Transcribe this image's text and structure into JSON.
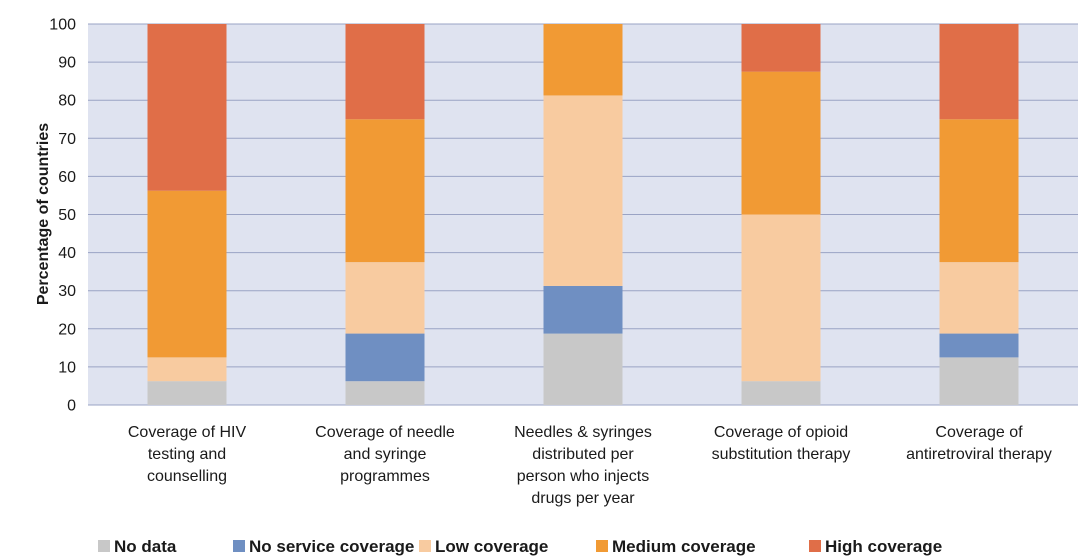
{
  "chart_data": {
    "type": "bar",
    "stacked": true,
    "categories": [
      [
        "Coverage of HIV",
        "testing and",
        "counselling"
      ],
      [
        "Coverage of needle",
        "and syringe",
        "programmes"
      ],
      [
        "Needles & syringes",
        "distributed per",
        "person who injects",
        "drugs per year"
      ],
      [
        "Coverage of opioid",
        "substitution therapy"
      ],
      [
        "Coverage of",
        "antiretroviral therapy"
      ]
    ],
    "series": [
      {
        "name": "No data",
        "color": "#c8c8c8",
        "values": [
          6.25,
          6.25,
          18.75,
          6.25,
          12.5
        ]
      },
      {
        "name": "No service coverage",
        "color": "#6f8fc2",
        "values": [
          0,
          12.5,
          12.5,
          0,
          6.25
        ]
      },
      {
        "name": "Low coverage",
        "color": "#f8cba0",
        "values": [
          6.25,
          18.75,
          50,
          43.75,
          18.75
        ]
      },
      {
        "name": "Medium coverage",
        "color": "#f19a34",
        "values": [
          43.75,
          37.5,
          18.75,
          37.5,
          37.5
        ]
      },
      {
        "name": "High coverage",
        "color": "#e06e48",
        "values": [
          43.75,
          25,
          0,
          12.5,
          25
        ]
      }
    ],
    "ylabel": "Percentage of countries",
    "yticks": [
      0,
      10,
      20,
      30,
      40,
      50,
      60,
      70,
      80,
      90,
      100
    ],
    "ylim": [
      0,
      100
    ],
    "grid": true,
    "plot_background": "#dfe3f0",
    "grid_color": "#9aa3c4",
    "legend_position": "bottom"
  }
}
